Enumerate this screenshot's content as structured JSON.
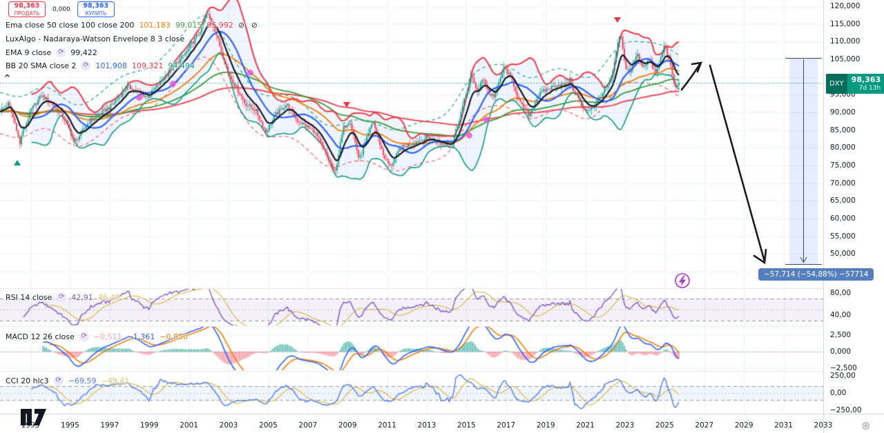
{
  "symbol_panel": {
    "sell_price": "98,363",
    "sell_label": "ПРОДАТЬ",
    "spread": "0,000",
    "buy_price": "98,363",
    "buy_label": "КУПИТЬ"
  },
  "legends": {
    "ema_row": {
      "title": "Ema close 50 close 100 close 200",
      "values": [
        {
          "text": "101,183",
          "color": "#f57c00"
        },
        {
          "text": "99,015",
          "color": "#43a047"
        },
        {
          "text": "95,992",
          "color": "#f23645"
        }
      ],
      "suffix_icons": "⊘ ⊘"
    },
    "luxalgo_row": {
      "title": "LuxAlgo - Nadaraya-Watson Envelope 8 3 close"
    },
    "ema9_row": {
      "title": "EMA 9 close",
      "values": [
        {
          "text": "99,422",
          "color": "#131722"
        }
      ]
    },
    "bb_row": {
      "title": "BB 20 SMA close 2",
      "values": [
        {
          "text": "101,908",
          "color": "#2962ff"
        },
        {
          "text": "109,321",
          "color": "#f23645"
        },
        {
          "text": "94,494",
          "color": "#089981"
        }
      ]
    },
    "rsi_row": {
      "title": "RSI 14 close",
      "values": [
        {
          "text": "42,91",
          "color": "#7e57c2"
        },
        {
          "text": "46,49",
          "color": "#dfc05e"
        }
      ]
    },
    "macd_row": {
      "title": "MACD 12 26 close",
      "values": [
        {
          "text": "−0,511",
          "color": "#f7a1a7"
        },
        {
          "text": "−1,361",
          "color": "#2962ff"
        },
        {
          "text": "−0,850",
          "color": "#f57c00"
        }
      ]
    },
    "cci_row": {
      "title": "CCI 20 hlc3",
      "values": [
        {
          "text": "−69,59",
          "color": "#4a7bf7"
        },
        {
          "text": "−49,41",
          "color": "#dfc05e"
        }
      ]
    }
  },
  "price_label": {
    "symbol": "DXY",
    "price": "98,363",
    "countdown": "7d 13h"
  },
  "measure_label": "−57,714 (−54,88%) −57714",
  "scale_icon": "◎",
  "axes": {
    "price_ticks": [
      {
        "label": "120,000",
        "value": 120
      },
      {
        "label": "115,000",
        "value": 115
      },
      {
        "label": "110,000",
        "value": 110
      },
      {
        "label": "105,000",
        "value": 105
      },
      {
        "label": "100,000",
        "value": 100
      },
      {
        "label": "95,000",
        "value": 95
      },
      {
        "label": "90,000",
        "value": 90
      },
      {
        "label": "85,000",
        "value": 85
      },
      {
        "label": "80,000",
        "value": 80
      },
      {
        "label": "75,000",
        "value": 75
      },
      {
        "label": "70,000",
        "value": 70
      },
      {
        "label": "65,000",
        "value": 65
      },
      {
        "label": "60,000",
        "value": 60
      },
      {
        "label": "55,000",
        "value": 55
      },
      {
        "label": "50,000",
        "value": 50
      },
      {
        "label": "45,000",
        "value": 45
      }
    ],
    "time_ticks": [
      {
        "label": "1993",
        "year": 1993
      },
      {
        "label": "1995",
        "year": 1995
      },
      {
        "label": "1997",
        "year": 1997
      },
      {
        "label": "1999",
        "year": 1999
      },
      {
        "label": "2001",
        "year": 2001
      },
      {
        "label": "2003",
        "year": 2003
      },
      {
        "label": "2005",
        "year": 2005
      },
      {
        "label": "2007",
        "year": 2007
      },
      {
        "label": "2009",
        "year": 2009
      },
      {
        "label": "2011",
        "year": 2011
      },
      {
        "label": "2013",
        "year": 2013
      },
      {
        "label": "2015",
        "year": 2015
      },
      {
        "label": "2017",
        "year": 2017
      },
      {
        "label": "2019",
        "year": 2019
      },
      {
        "label": "2021",
        "year": 2021
      },
      {
        "label": "2023",
        "year": 2023
      },
      {
        "label": "2025",
        "year": 2025
      },
      {
        "label": "2027",
        "year": 2027
      },
      {
        "label": "2029",
        "year": 2029
      },
      {
        "label": "2031",
        "year": 2031
      },
      {
        "label": "2033",
        "year": 2033
      }
    ],
    "rsi_ticks": [
      {
        "label": "80,00",
        "value": 80
      },
      {
        "label": "40,00",
        "value": 40
      }
    ],
    "macd_ticks": [
      {
        "label": "2,500",
        "value": 2.5
      },
      {
        "label": "0,000",
        "value": 0
      },
      {
        "label": "−2,500",
        "value": -2.5
      }
    ],
    "cci_ticks": [
      {
        "label": "250,00",
        "value": 250
      },
      {
        "label": "0,00",
        "value": 0
      },
      {
        "label": "−250,00",
        "value": -250
      }
    ]
  },
  "chart_data": {
    "type": "candlestick",
    "symbol": "DXY",
    "last_price": 98.363,
    "first_candle_year": 1991.47,
    "last_candle_year": 2025.68,
    "price_axis_range": [
      45,
      120
    ],
    "time_axis_range": [
      1993,
      2033
    ],
    "keyframes": [
      [
        1991.47,
        90.6
      ],
      [
        1991.9,
        92.5
      ],
      [
        1992.36,
        84.5
      ],
      [
        1992.44,
        79.8
      ],
      [
        1992.55,
        83.5
      ],
      [
        1993.03,
        90.6
      ],
      [
        1993.56,
        94.8
      ],
      [
        1994.08,
        92.5
      ],
      [
        1994.78,
        87.7
      ],
      [
        1995.23,
        81.5
      ],
      [
        1996.0,
        87.7
      ],
      [
        1997.04,
        91.6
      ],
      [
        1997.91,
        97.4
      ],
      [
        1998.61,
        95.0
      ],
      [
        1998.96,
        94.5
      ],
      [
        1999.83,
        100.4
      ],
      [
        2000.87,
        107.0
      ],
      [
        2001.57,
        113.1
      ],
      [
        2001.92,
        118.0
      ],
      [
        2002.27,
        114.0
      ],
      [
        2002.97,
        101.3
      ],
      [
        2003.84,
        92.5
      ],
      [
        2004.36,
        90.6
      ],
      [
        2004.88,
        84.5
      ],
      [
        2005.4,
        89.6
      ],
      [
        2005.93,
        92.3
      ],
      [
        2006.45,
        87.7
      ],
      [
        2007.32,
        84.7
      ],
      [
        2007.84,
        78.9
      ],
      [
        2008.37,
        72.8
      ],
      [
        2008.79,
        85.7
      ],
      [
        2009.13,
        87.7
      ],
      [
        2009.59,
        76.5
      ],
      [
        2010.28,
        87.5
      ],
      [
        2010.81,
        77.9
      ],
      [
        2011.16,
        74.6
      ],
      [
        2011.68,
        79.9
      ],
      [
        2012.37,
        81.5
      ],
      [
        2013.07,
        83.0
      ],
      [
        2013.77,
        81.0
      ],
      [
        2014.29,
        81.3
      ],
      [
        2015.23,
        100.2
      ],
      [
        2015.58,
        95.8
      ],
      [
        2015.86,
        100.0
      ],
      [
        2016.14,
        95.2
      ],
      [
        2016.42,
        94.6
      ],
      [
        2016.9,
        102.8
      ],
      [
        2017.32,
        99.0
      ],
      [
        2017.67,
        92.8
      ],
      [
        2018.16,
        89.2
      ],
      [
        2018.65,
        95.0
      ],
      [
        2019.0,
        96.3
      ],
      [
        2019.52,
        97.8
      ],
      [
        2020.13,
        97.8
      ],
      [
        2020.21,
        100.6
      ],
      [
        2020.29,
        97.2
      ],
      [
        2020.56,
        95.0
      ],
      [
        2020.91,
        90.4
      ],
      [
        2021.16,
        90.8
      ],
      [
        2021.5,
        92.2
      ],
      [
        2021.96,
        96.2
      ],
      [
        2022.31,
        99.2
      ],
      [
        2022.58,
        107.5
      ],
      [
        2022.76,
        112.8
      ],
      [
        2023.0,
        103.2
      ],
      [
        2023.25,
        101.2
      ],
      [
        2023.6,
        106.6
      ],
      [
        2023.88,
        103.0
      ],
      [
        2024.22,
        104.8
      ],
      [
        2024.57,
        100.8
      ],
      [
        2024.85,
        106.2
      ],
      [
        2025.02,
        109.6
      ],
      [
        2025.26,
        103.8
      ],
      [
        2025.54,
        96.6
      ],
      [
        2025.68,
        98.363
      ]
    ],
    "overlays": [
      {
        "name": "EMA 9",
        "period": 9
      },
      {
        "name": "EMA 50",
        "period": 50
      },
      {
        "name": "EMA 100",
        "period": 100
      },
      {
        "name": "EMA 200",
        "period": 200
      },
      {
        "name": "Bollinger Bands",
        "period": 20,
        "stdev": 2
      },
      {
        "name": "Nadaraya-Watson Envelope",
        "bandwidth": 8,
        "multiplier": 3
      }
    ],
    "sub_panels": [
      {
        "name": "RSI",
        "period": 14,
        "range_shown": [
          40,
          80
        ]
      },
      {
        "name": "MACD",
        "fast": 12,
        "slow": 26,
        "signal": 9,
        "range_shown": [
          -2.5,
          2.5
        ]
      },
      {
        "name": "CCI",
        "period": 20,
        "source": "hlc3",
        "range_shown": [
          -250,
          250
        ]
      }
    ],
    "markers": [
      {
        "type": "caret",
        "year": 1991.8,
        "price": 99.6
      },
      {
        "type": "triangle-up",
        "year": 1992.33,
        "price": 76.6,
        "color": "#089981"
      },
      {
        "type": "triangle-down",
        "year": 2008.96,
        "price": 91.3,
        "color": "#f23645"
      },
      {
        "type": "triangle-down",
        "year": 2022.6,
        "price": 115.4,
        "color": "#f23645"
      },
      {
        "type": "dot",
        "year": 1998.5,
        "price": 94.2,
        "color": "#e254d8"
      },
      {
        "type": "dot",
        "year": 2000.2,
        "price": 98.1,
        "color": "#e254d8"
      },
      {
        "type": "dot",
        "year": 2004.1,
        "price": 101.2,
        "color": "#e254d8"
      },
      {
        "type": "dot",
        "year": 2015.16,
        "price": 83.5,
        "color": "#e254d8"
      },
      {
        "type": "dot",
        "year": 2016.0,
        "price": 88.0,
        "color": "#e254d8"
      }
    ],
    "measurement": {
      "change": "−57,714",
      "change_pct": "−54,88%",
      "price_from": 105.17,
      "price_to": 47.45,
      "year_from": 2031.3,
      "year_to": 2032.7
    },
    "annotations": [
      {
        "type": "arrow",
        "from": {
          "year": 2025.9,
          "price": 96.6
        },
        "to": {
          "year": 2026.9,
          "price": 104.2
        }
      },
      {
        "type": "arrow",
        "from": {
          "year": 2027.3,
          "price": 103.0
        },
        "to": {
          "year": 2030.1,
          "price": 47.3
        }
      }
    ],
    "colors": {
      "up": "#089981",
      "down": "#f23645",
      "ema9": "#131722",
      "ema50": "#f57c00",
      "ema100": "#43a047",
      "ema200": "#ef4a56",
      "bb_basis": "#2962ff",
      "bb_upper": "#f23645",
      "bb_lower": "#099a84",
      "bb_fill": "rgba(41,98,255,0.07)",
      "nw_upper": "#2fab8c",
      "nw_lower": "#f5656f",
      "price_line": "#089981",
      "rsi": "#7e57c2",
      "rsi_ma": "#dfc05e",
      "rsi_band": "rgba(126,87,194,0.09)",
      "macd": "#2962ff",
      "macd_signal": "#f57c00",
      "hist_up": "rgba(38,166,154,0.75)",
      "hist_dn": "rgba(242,54,69,0.5)",
      "cci": "#4a7bf7",
      "cci_ma": "#dfc05e",
      "cci_band": "rgba(73,133,231,0.08)",
      "grid": "#eef1f6"
    }
  }
}
